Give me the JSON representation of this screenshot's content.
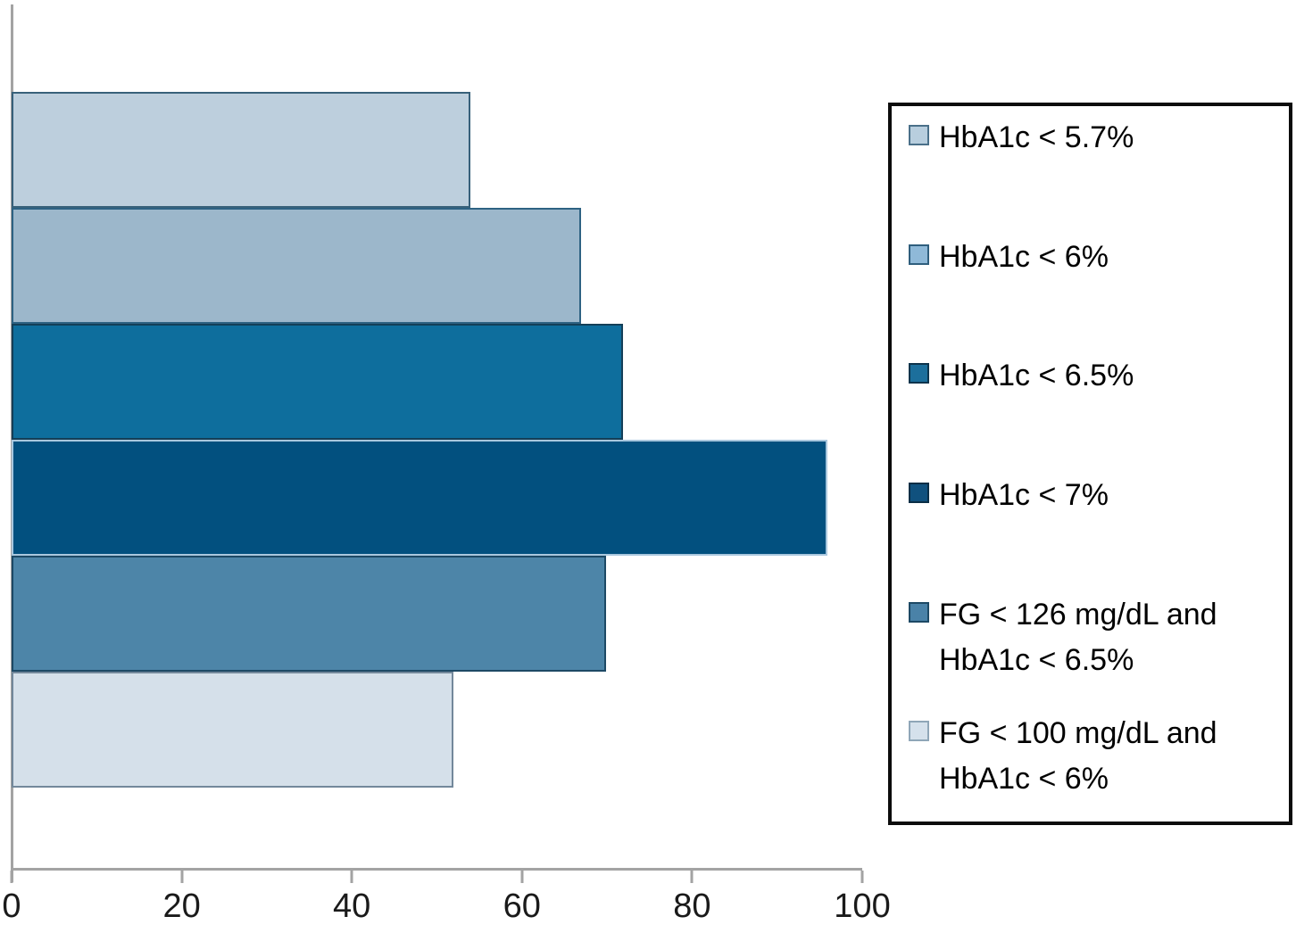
{
  "chart_data": {
    "type": "bar",
    "orientation": "horizontal",
    "title": "",
    "xlabel": "",
    "ylabel": "",
    "xlim": [
      0,
      100
    ],
    "x_tick_labels": [
      "0",
      "20",
      "40",
      "60",
      "80",
      "100"
    ],
    "x_tick_values": [
      0,
      20,
      40,
      60,
      80,
      100
    ],
    "grid": false,
    "legend_position": "right",
    "categories": [
      "HbA1c < 5.7%",
      "HbA1c < 6%",
      "HbA1c < 6.5%",
      "HbA1c < 7%",
      "FG < 126 mg/dL and HbA1c < 6.5%",
      "FG < 100 mg/dL and HbA1c < 6%"
    ],
    "values": [
      54,
      67,
      72,
      96,
      70,
      52
    ],
    "bar_fill_colors": [
      "#bdcfdd",
      "#9cb7cb",
      "#0e6e9d",
      "#02507f",
      "#4d85a8",
      "#d5e0ea"
    ],
    "bar_border_colors": [
      "#38617a",
      "#2e6283",
      "#143f58",
      "#a9c7de",
      "#1d4965",
      "#73889b"
    ],
    "axis_color": "#a3a3a3",
    "tick_label_color": "#1a1a1a"
  },
  "legend": {
    "items": [
      {
        "label": "HbA1c < 5.7%",
        "swatch_fill": "#b8cede",
        "swatch_border": "#4a7089"
      },
      {
        "label": "HbA1c < 6%",
        "swatch_fill": "#8fb9d8",
        "swatch_border": "#2f5e7d"
      },
      {
        "label": "HbA1c < 6.5%",
        "swatch_fill": "#1c6f9c",
        "swatch_border": "#0d344c"
      },
      {
        "label": "HbA1c < 7%",
        "swatch_fill": "#10517e",
        "swatch_border": "#0a2e46"
      },
      {
        "label": "FG < 126 mg/dL and\nHbA1c < 6.5%",
        "swatch_fill": "#4a82a8",
        "swatch_border": "#1d4965"
      },
      {
        "label": "FG < 100 mg/dL and\nHbA1c < 6%",
        "swatch_fill": "#d5e1ec",
        "swatch_border": "#8fa6b8"
      }
    ]
  }
}
